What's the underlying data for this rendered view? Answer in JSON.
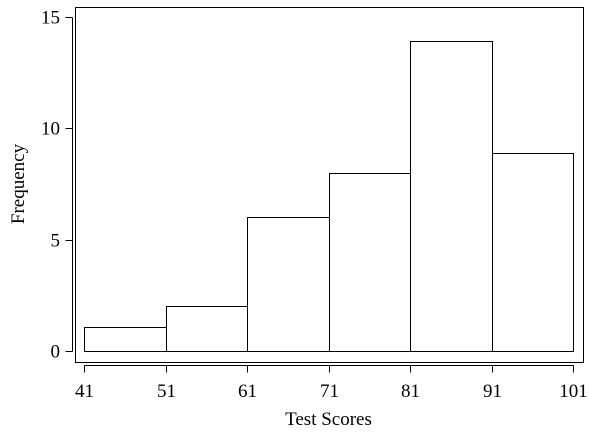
{
  "chart_data": {
    "type": "bar",
    "subtype": "histogram",
    "title": "",
    "xlabel": "Test Scores",
    "ylabel": "Frequency",
    "bin_edges": [
      41,
      51,
      61,
      71,
      81,
      91,
      101
    ],
    "values": [
      1.1,
      2,
      6,
      8,
      13.9,
      8.9
    ],
    "xlim": [
      41,
      101
    ],
    "ylim": [
      0,
      15
    ],
    "xticks": [
      41,
      51,
      61,
      71,
      81,
      91,
      101
    ],
    "yticks": [
      0,
      5,
      10,
      15
    ],
    "grid": false,
    "legend": "none",
    "colors": {
      "bar_fill": "#ffffff",
      "bar_stroke": "#000000",
      "axis": "#000000",
      "text": "#000000"
    }
  }
}
